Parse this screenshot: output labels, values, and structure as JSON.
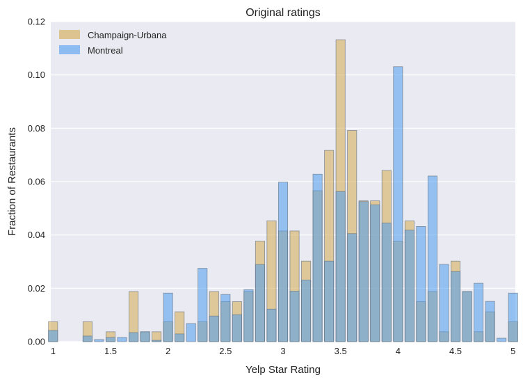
{
  "chart_data": {
    "type": "bar",
    "title": "Original ratings",
    "xlabel": "Yelp Star Rating",
    "ylabel": "Fraction of Restaurants",
    "xlim": [
      0.98,
      5.02
    ],
    "ylim": [
      0,
      0.12
    ],
    "xticks": [
      1,
      1.5,
      2,
      2.5,
      3,
      3.5,
      4,
      4.5,
      5
    ],
    "xtick_labels": [
      "1",
      "1.5",
      "2",
      "2.5",
      "3",
      "3.5",
      "4",
      "4.5",
      "5"
    ],
    "yticks": [
      0,
      0.02,
      0.04,
      0.06,
      0.08,
      0.1,
      0.12
    ],
    "ytick_labels": [
      "0.00",
      "0.02",
      "0.04",
      "0.06",
      "0.08",
      "0.10",
      "0.12"
    ],
    "grid": true,
    "legend": "top-left",
    "bin_width": 0.1,
    "x": [
      1.0,
      1.1,
      1.2,
      1.3,
      1.4,
      1.5,
      1.6,
      1.7,
      1.8,
      1.9,
      2.0,
      2.1,
      2.2,
      2.3,
      2.4,
      2.5,
      2.6,
      2.7,
      2.8,
      2.9,
      3.0,
      3.1,
      3.2,
      3.3,
      3.4,
      3.5,
      3.6,
      3.7,
      3.8,
      3.9,
      4.0,
      4.1,
      4.2,
      4.3,
      4.4,
      4.5,
      4.6,
      4.7,
      4.8,
      4.9,
      5.0
    ],
    "series": [
      {
        "name": "Champaign-Urbana",
        "color": "#d4a94e",
        "values": [
          0.0075,
          0,
          0,
          0.0075,
          0,
          0.0037,
          0,
          0.0188,
          0.0037,
          0.0037,
          0.0075,
          0.0112,
          0,
          0.0075,
          0.0188,
          0.015,
          0.015,
          0.0188,
          0.0377,
          0.0453,
          0.0415,
          0.0415,
          0.0302,
          0.0566,
          0.0717,
          0.1132,
          0.0792,
          0.0528,
          0.0528,
          0.0642,
          0.0377,
          0.0453,
          0.015,
          0.0188,
          0.0037,
          0.0302,
          0.0188,
          0.0037,
          0.0112,
          0,
          0.0075
        ]
      },
      {
        "name": "Montreal",
        "color": "#4d9cf0",
        "values": [
          0.0042,
          0,
          0,
          0.0021,
          0.0008,
          0.0016,
          0.0016,
          0.0034,
          0.0037,
          0.0005,
          0.0182,
          0.0029,
          0.0068,
          0.0275,
          0.0096,
          0.0177,
          0.0101,
          0.0195,
          0.0289,
          0.0122,
          0.0598,
          0.0189,
          0.0231,
          0.0628,
          0.0302,
          0.0563,
          0.0405,
          0.0525,
          0.0513,
          0.0445,
          0.1031,
          0.0418,
          0.0432,
          0.0621,
          0.029,
          0.0263,
          0.0188,
          0.0219,
          0.0151,
          0.0013,
          0.0182
        ]
      }
    ]
  }
}
